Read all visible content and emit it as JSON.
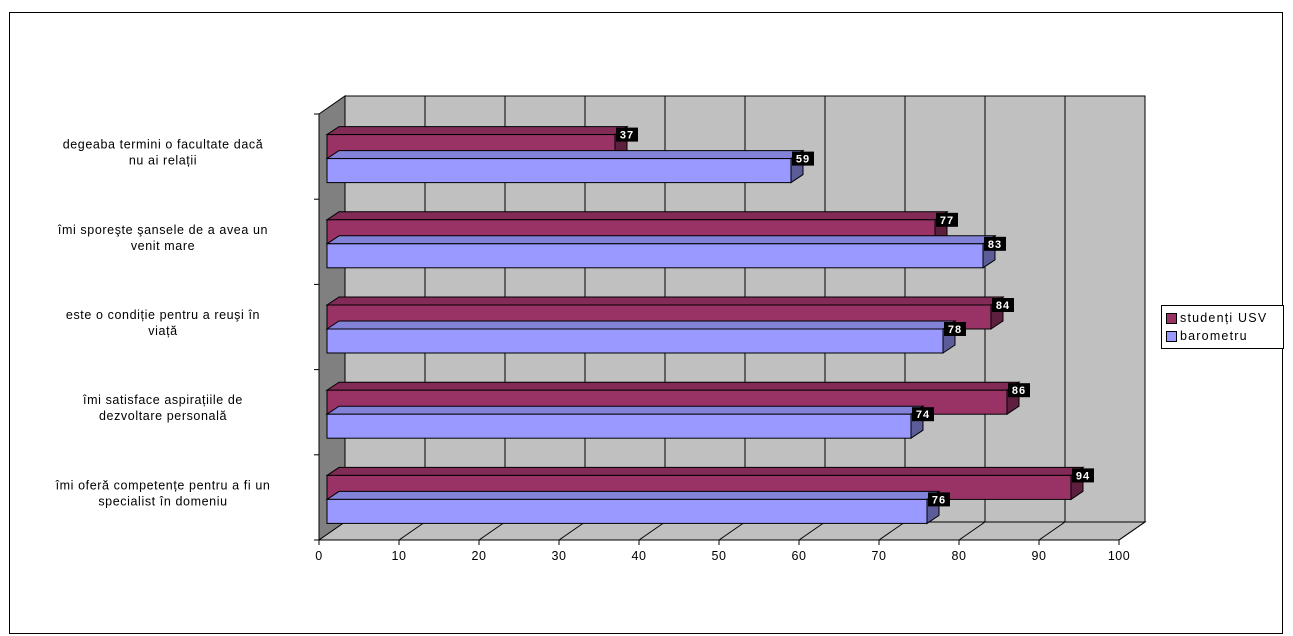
{
  "chart_data": {
    "type": "bar",
    "orientation": "horizontal",
    "three_d": true,
    "categories": [
      [
        "degeaba termini o facultate dacă",
        "nu ai relații"
      ],
      [
        "îmi sporeşte şansele de a avea un",
        "venit mare"
      ],
      [
        "este o condiție pentru a reuşi în",
        "viață"
      ],
      [
        "îmi satisface aspirațiile de",
        "dezvoltare personală"
      ],
      [
        "îmi oferă competențe pentru a fi un",
        "specialist în domeniu"
      ]
    ],
    "series": [
      {
        "name": "studenți USV",
        "color": "#993366",
        "values": [
          37,
          77,
          84,
          86,
          94
        ]
      },
      {
        "name": "barometru",
        "color": "#9999ff",
        "values": [
          59,
          83,
          78,
          74,
          76
        ]
      }
    ],
    "x_ticks": [
      "0",
      "10",
      "20",
      "30",
      "40",
      "50",
      "60",
      "70",
      "80",
      "90",
      "100"
    ],
    "xlim": [
      0,
      100
    ],
    "grid": true,
    "legend_position": "right"
  }
}
